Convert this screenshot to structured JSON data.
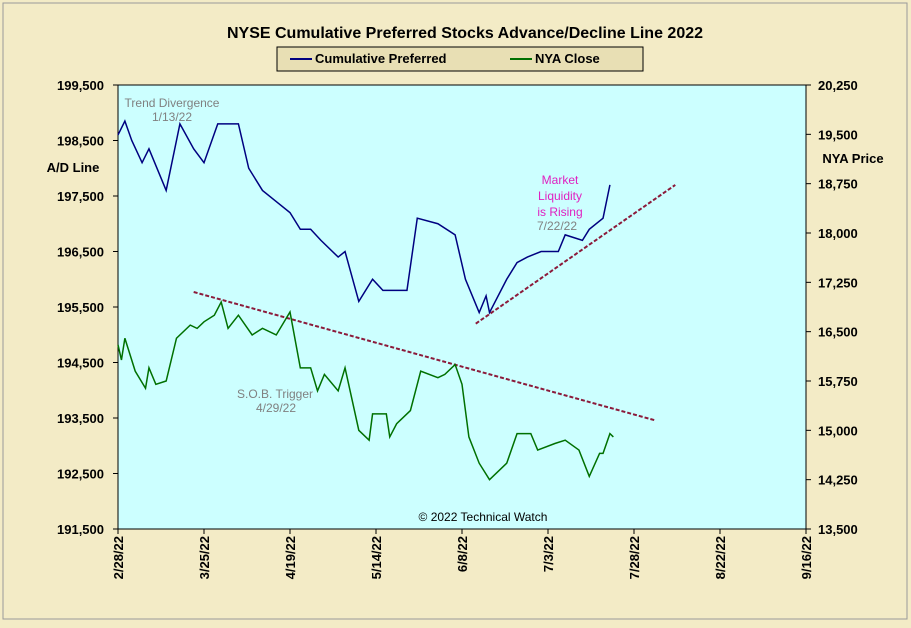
{
  "chart_data": {
    "type": "line",
    "title": "NYSE Cumulative  Preferred Stocks Advance/Decline  Line 2022",
    "ylabel": "A/D Line",
    "y2label": "NYA Price",
    "ylim": [
      191500,
      199500
    ],
    "yticks": [
      {
        "value": 191500,
        "label": "191,500"
      },
      {
        "value": 192500,
        "label": "192,500"
      },
      {
        "value": 193500,
        "label": "193,500"
      },
      {
        "value": 194500,
        "label": "194,500"
      },
      {
        "value": 195500,
        "label": "195,500"
      },
      {
        "value": 196500,
        "label": "196,500"
      },
      {
        "value": 197500,
        "label": "197,500"
      },
      {
        "value": 198500,
        "label": "198,500"
      },
      {
        "value": 199500,
        "label": "199,500"
      }
    ],
    "y2lim": [
      13500,
      20250
    ],
    "y2ticks": [
      {
        "value": 13500,
        "label": "13,500"
      },
      {
        "value": 14250,
        "label": "14,250"
      },
      {
        "value": 15000,
        "label": "15,000"
      },
      {
        "value": 15750,
        "label": "15,750"
      },
      {
        "value": 16500,
        "label": "16,500"
      },
      {
        "value": 17250,
        "label": "17,250"
      },
      {
        "value": 18000,
        "label": "18,000"
      },
      {
        "value": 18750,
        "label": "18,750"
      },
      {
        "value": 19500,
        "label": "19,500"
      },
      {
        "value": 20250,
        "label": "20,250"
      }
    ],
    "xlim": [
      "2022-02-28",
      "2022-09-16"
    ],
    "xticks": [
      {
        "value": "2022-02-28",
        "label": "2/28/22"
      },
      {
        "value": "2022-03-25",
        "label": "3/25/22"
      },
      {
        "value": "2022-04-19",
        "label": "4/19/22"
      },
      {
        "value": "2022-05-14",
        "label": "5/14/22"
      },
      {
        "value": "2022-06-08",
        "label": "6/8/22"
      },
      {
        "value": "2022-07-03",
        "label": "7/3/22"
      },
      {
        "value": "2022-07-28",
        "label": "7/28/22"
      },
      {
        "value": "2022-08-22",
        "label": "8/22/22"
      },
      {
        "value": "2022-09-16",
        "label": "9/16/22"
      }
    ],
    "series": [
      {
        "name": "Cumulative Preferred",
        "color": "#000080",
        "x": [
          "2022-02-28",
          "2022-03-02",
          "2022-03-04",
          "2022-03-07",
          "2022-03-09",
          "2022-03-14",
          "2022-03-18",
          "2022-03-22",
          "2022-03-25",
          "2022-03-29",
          "2022-04-01",
          "2022-04-04",
          "2022-04-07",
          "2022-04-11",
          "2022-04-15",
          "2022-04-19",
          "2022-04-22",
          "2022-04-25",
          "2022-04-28",
          "2022-05-03",
          "2022-05-05",
          "2022-05-09",
          "2022-05-13",
          "2022-05-16",
          "2022-05-20",
          "2022-05-23",
          "2022-05-26",
          "2022-06-01",
          "2022-06-06",
          "2022-06-09",
          "2022-06-13",
          "2022-06-15",
          "2022-06-16",
          "2022-06-21",
          "2022-06-24",
          "2022-06-27",
          "2022-07-01",
          "2022-07-06",
          "2022-07-08",
          "2022-07-13",
          "2022-07-15",
          "2022-07-19",
          "2022-07-21"
        ],
        "values": [
          198600,
          198850,
          198500,
          198100,
          198350,
          197600,
          198800,
          198350,
          198100,
          198800,
          198800,
          198800,
          198000,
          197600,
          197400,
          197200,
          196900,
          196900,
          196700,
          196400,
          196500,
          195600,
          196000,
          195800,
          195800,
          195800,
          197100,
          197000,
          196800,
          196000,
          195400,
          195700,
          195400,
          196000,
          196300,
          196400,
          196500,
          196500,
          196800,
          196700,
          196900,
          197100,
          197700
        ]
      },
      {
        "name": "NYA Close",
        "color": "#007000",
        "axis": "y2",
        "x": [
          "2022-02-28",
          "2022-03-01",
          "2022-03-02",
          "2022-03-05",
          "2022-03-08",
          "2022-03-09",
          "2022-03-11",
          "2022-03-14",
          "2022-03-17",
          "2022-03-21",
          "2022-03-23",
          "2022-03-25",
          "2022-03-28",
          "2022-03-30",
          "2022-04-01",
          "2022-04-04",
          "2022-04-08",
          "2022-04-11",
          "2022-04-15",
          "2022-04-19",
          "2022-04-22",
          "2022-04-25",
          "2022-04-27",
          "2022-04-29",
          "2022-05-03",
          "2022-05-05",
          "2022-05-09",
          "2022-05-12",
          "2022-05-13",
          "2022-05-17",
          "2022-05-18",
          "2022-05-20",
          "2022-05-24",
          "2022-05-27",
          "2022-06-01",
          "2022-06-03",
          "2022-06-06",
          "2022-06-08",
          "2022-06-10",
          "2022-06-13",
          "2022-06-16",
          "2022-06-21",
          "2022-06-24",
          "2022-06-28",
          "2022-06-30",
          "2022-07-05",
          "2022-07-08",
          "2022-07-12",
          "2022-07-15",
          "2022-07-18",
          "2022-07-19",
          "2022-07-21",
          "2022-07-22"
        ],
        "values": [
          16300,
          16070,
          16400,
          15900,
          15640,
          15950,
          15700,
          15750,
          16400,
          16600,
          16550,
          16650,
          16750,
          16950,
          16550,
          16750,
          16450,
          16550,
          16450,
          16800,
          15950,
          15950,
          15600,
          15850,
          15600,
          15950,
          15000,
          14850,
          15250,
          15250,
          14900,
          15100,
          15300,
          15900,
          15800,
          15850,
          16000,
          15700,
          14900,
          14500,
          14250,
          14500,
          14950,
          14950,
          14700,
          14800,
          14850,
          14700,
          14300,
          14650,
          14650,
          14950,
          14900
        ]
      }
    ],
    "trend_lines": [
      {
        "color": "#8b1a3a",
        "x": [
          "2022-03-22",
          "2022-08-03"
        ],
        "y": [
          195770,
          193460
        ]
      },
      {
        "color": "#8b1a3a",
        "x": [
          "2022-06-12",
          "2022-08-09"
        ],
        "y": [
          195200,
          197700
        ]
      }
    ],
    "annotations": [
      {
        "text": "Trend  Divergence",
        "color": "#808080"
      },
      {
        "text": "1/13/22",
        "color": "#808080"
      },
      {
        "text": "Market",
        "color": "#e020c0"
      },
      {
        "text": "Liquidity",
        "color": "#e020c0"
      },
      {
        "text": "is Rising",
        "color": "#e020c0"
      },
      {
        "text": "7/22/22",
        "color": "#808080"
      },
      {
        "text": "S.O.B. Trigger",
        "color": "#808080"
      },
      {
        "text": "4/29/22",
        "color": "#808080"
      },
      {
        "text": "© 2022 Technical Watch",
        "color": "#000000"
      }
    ],
    "plot_background": "#ccffff",
    "legend": "top"
  }
}
